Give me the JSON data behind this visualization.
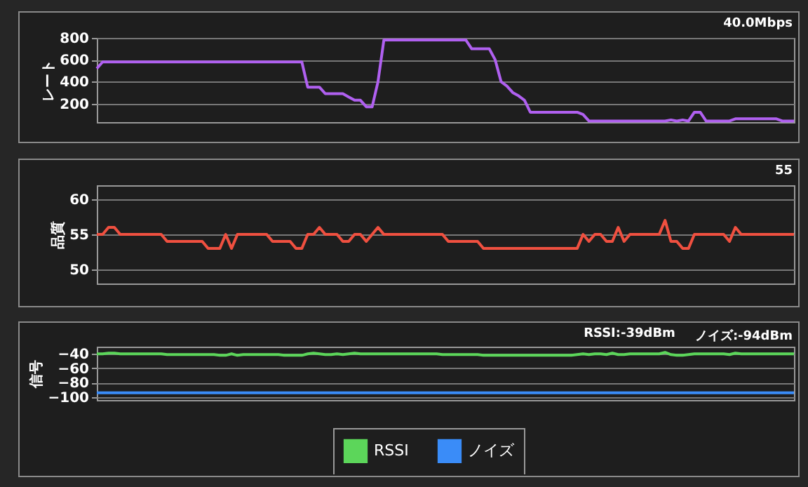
{
  "chart_data": [
    {
      "type": "line",
      "ylabel": "レート",
      "annotations": [
        "40.0Mbps"
      ],
      "grid": "y",
      "ylim": [
        30,
        800
      ],
      "yticks": [
        200,
        400,
        600,
        800
      ],
      "categories": [
        null,
        null,
        null,
        null,
        null,
        null,
        null,
        null,
        null,
        null,
        null,
        null,
        null,
        null,
        null,
        null,
        null,
        null,
        null,
        null,
        null,
        null,
        null,
        null,
        null,
        null,
        null,
        null,
        null,
        null,
        null,
        null,
        null,
        null,
        null,
        null,
        null,
        null,
        null,
        null,
        null,
        null,
        null,
        null,
        null,
        null,
        null,
        null,
        null,
        null,
        null,
        null,
        null,
        null,
        null,
        null,
        null,
        null,
        null,
        null,
        null,
        null,
        null,
        null,
        null,
        null,
        null,
        null,
        null,
        null,
        null,
        null,
        null,
        null,
        null,
        null,
        null,
        null,
        null,
        null,
        null,
        null,
        null,
        null,
        null,
        null,
        null,
        null,
        null,
        null,
        null,
        null,
        null,
        null,
        null,
        null,
        null,
        null,
        null,
        null,
        null,
        null,
        null,
        null,
        null,
        null,
        null,
        null,
        null,
        null,
        null,
        null,
        null,
        null,
        null,
        null,
        null,
        null,
        null,
        null
      ],
      "series": [
        {
          "color": "#b060f0",
          "values": [
            520,
            580,
            580,
            580,
            580,
            580,
            580,
            580,
            580,
            580,
            580,
            580,
            580,
            580,
            580,
            580,
            580,
            580,
            580,
            580,
            580,
            580,
            580,
            580,
            580,
            580,
            580,
            580,
            580,
            580,
            580,
            580,
            580,
            580,
            580,
            580,
            350,
            350,
            350,
            290,
            290,
            290,
            290,
            260,
            230,
            230,
            170,
            170,
            400,
            780,
            780,
            780,
            780,
            780,
            780,
            780,
            780,
            780,
            780,
            780,
            780,
            780,
            780,
            780,
            700,
            700,
            700,
            700,
            600,
            400,
            360,
            300,
            270,
            230,
            120,
            120,
            120,
            120,
            120,
            120,
            120,
            120,
            120,
            100,
            40,
            40,
            40,
            40,
            40,
            40,
            40,
            40,
            40,
            40,
            40,
            40,
            40,
            40,
            50,
            40,
            50,
            40,
            120,
            120,
            40,
            40,
            40,
            40,
            40,
            60,
            60,
            60,
            60,
            60,
            60,
            60,
            60,
            40,
            40,
            40
          ]
        }
      ]
    },
    {
      "type": "line",
      "ylabel": "品質",
      "annotations": [
        "55"
      ],
      "grid": "y",
      "ylim": [
        48,
        62
      ],
      "yticks": [
        50,
        55,
        60
      ],
      "categories": [
        null,
        null,
        null,
        null,
        null,
        null,
        null,
        null,
        null,
        null,
        null,
        null,
        null,
        null,
        null,
        null,
        null,
        null,
        null,
        null,
        null,
        null,
        null,
        null,
        null,
        null,
        null,
        null,
        null,
        null,
        null,
        null,
        null,
        null,
        null,
        null,
        null,
        null,
        null,
        null,
        null,
        null,
        null,
        null,
        null,
        null,
        null,
        null,
        null,
        null,
        null,
        null,
        null,
        null,
        null,
        null,
        null,
        null,
        null,
        null,
        null,
        null,
        null,
        null,
        null,
        null,
        null,
        null,
        null,
        null,
        null,
        null,
        null,
        null,
        null,
        null,
        null,
        null,
        null,
        null,
        null,
        null,
        null,
        null,
        null,
        null,
        null,
        null,
        null,
        null,
        null,
        null,
        null,
        null,
        null,
        null,
        null,
        null,
        null,
        null,
        null,
        null,
        null,
        null,
        null,
        null,
        null,
        null,
        null,
        null,
        null,
        null,
        null,
        null,
        null,
        null,
        null,
        null,
        null,
        null
      ],
      "series": [
        {
          "color": "#f05040",
          "values": [
            55,
            55,
            56,
            56,
            55,
            55,
            55,
            55,
            55,
            55,
            55,
            55,
            54,
            54,
            54,
            54,
            54,
            54,
            54,
            53,
            53,
            53,
            55,
            53,
            55,
            55,
            55,
            55,
            55,
            55,
            54,
            54,
            54,
            54,
            53,
            53,
            55,
            55,
            56,
            55,
            55,
            55,
            54,
            54,
            55,
            55,
            54,
            55,
            56,
            55,
            55,
            55,
            55,
            55,
            55,
            55,
            55,
            55,
            55,
            55,
            54,
            54,
            54,
            54,
            54,
            54,
            53,
            53,
            53,
            53,
            53,
            53,
            53,
            53,
            53,
            53,
            53,
            53,
            53,
            53,
            53,
            53,
            53,
            55,
            54,
            55,
            55,
            54,
            54,
            56,
            54,
            55,
            55,
            55,
            55,
            55,
            55,
            57,
            54,
            54,
            53,
            53,
            55,
            55,
            55,
            55,
            55,
            55,
            54,
            56,
            55,
            55,
            55,
            55,
            55,
            55,
            55,
            55,
            55,
            55
          ]
        }
      ]
    },
    {
      "type": "line",
      "ylabel": "信号",
      "annotations": [
        "RSSI:-39dBm",
        "ノイズ:-94dBm"
      ],
      "grid": "y",
      "legend": "bottom",
      "ylim": [
        -104,
        -30
      ],
      "yticks": [
        -100,
        -80,
        -60,
        -40
      ],
      "categories": [
        null,
        null,
        null,
        null,
        null,
        null,
        null,
        null,
        null,
        null,
        null,
        null,
        null,
        null,
        null,
        null,
        null,
        null,
        null,
        null,
        null,
        null,
        null,
        null,
        null,
        null,
        null,
        null,
        null,
        null,
        null,
        null,
        null,
        null,
        null,
        null,
        null,
        null,
        null,
        null,
        null,
        null,
        null,
        null,
        null,
        null,
        null,
        null,
        null,
        null,
        null,
        null,
        null,
        null,
        null,
        null,
        null,
        null,
        null,
        null,
        null,
        null,
        null,
        null,
        null,
        null,
        null,
        null,
        null,
        null,
        null,
        null,
        null,
        null,
        null,
        null,
        null,
        null,
        null,
        null,
        null,
        null,
        null,
        null,
        null,
        null,
        null,
        null,
        null,
        null,
        null,
        null,
        null,
        null,
        null,
        null,
        null,
        null,
        null,
        null,
        null,
        null,
        null,
        null,
        null,
        null,
        null,
        null,
        null,
        null,
        null,
        null,
        null,
        null,
        null,
        null,
        null,
        null,
        null,
        null
      ],
      "series": [
        {
          "name": "RSSI",
          "color": "#5cd65a",
          "values": [
            -40,
            -40,
            -39,
            -39,
            -40,
            -40,
            -40,
            -40,
            -40,
            -40,
            -40,
            -40,
            -41,
            -41,
            -41,
            -41,
            -41,
            -41,
            -41,
            -41,
            -41,
            -42,
            -42,
            -40,
            -42,
            -41,
            -41,
            -41,
            -41,
            -41,
            -41,
            -41,
            -42,
            -42,
            -42,
            -42,
            -40,
            -39,
            -40,
            -41,
            -41,
            -40,
            -41,
            -40,
            -39,
            -40,
            -40,
            -40,
            -40,
            -40,
            -40,
            -40,
            -40,
            -40,
            -40,
            -40,
            -40,
            -40,
            -40,
            -41,
            -41,
            -41,
            -41,
            -41,
            -41,
            -41,
            -42,
            -42,
            -42,
            -42,
            -42,
            -42,
            -42,
            -42,
            -42,
            -42,
            -42,
            -42,
            -42,
            -42,
            -42,
            -42,
            -41,
            -40,
            -41,
            -40,
            -40,
            -41,
            -39,
            -41,
            -41,
            -40,
            -40,
            -40,
            -40,
            -40,
            -40,
            -38,
            -41,
            -42,
            -42,
            -41,
            -40,
            -40,
            -40,
            -40,
            -40,
            -40,
            -41,
            -39,
            -40,
            -40,
            -40,
            -40,
            -40,
            -40,
            -40,
            -40,
            -40,
            -40
          ]
        },
        {
          "name": "ノイズ",
          "color": "#3a8cf8",
          "values": [
            -94,
            -94,
            -94,
            -94,
            -94,
            -94,
            -94,
            -94,
            -94,
            -94,
            -94,
            -94,
            -94,
            -94,
            -94,
            -94,
            -94,
            -94,
            -94,
            -94,
            -94,
            -94,
            -94,
            -94,
            -94,
            -94,
            -94,
            -94,
            -94,
            -94,
            -94,
            -94,
            -94,
            -94,
            -94,
            -94,
            -94,
            -94,
            -94,
            -94,
            -94,
            -94,
            -94,
            -94,
            -94,
            -94,
            -94,
            -94,
            -94,
            -94,
            -94,
            -94,
            -94,
            -94,
            -94,
            -94,
            -94,
            -94,
            -94,
            -94,
            -94,
            -94,
            -94,
            -94,
            -94,
            -94,
            -94,
            -94,
            -94,
            -94,
            -94,
            -94,
            -94,
            -94,
            -94,
            -94,
            -94,
            -94,
            -94,
            -94,
            -94,
            -94,
            -94,
            -94,
            -94,
            -94,
            -94,
            -94,
            -94,
            -94,
            -94,
            -94,
            -94,
            -94,
            -94,
            -94,
            -94,
            -94,
            -94,
            -94,
            -94,
            -94,
            -94,
            -94,
            -94,
            -94,
            -94,
            -94,
            -94,
            -94,
            -94,
            -94,
            -94,
            -94,
            -94,
            -94,
            -94,
            -94,
            -94,
            -94
          ]
        }
      ]
    }
  ]
}
